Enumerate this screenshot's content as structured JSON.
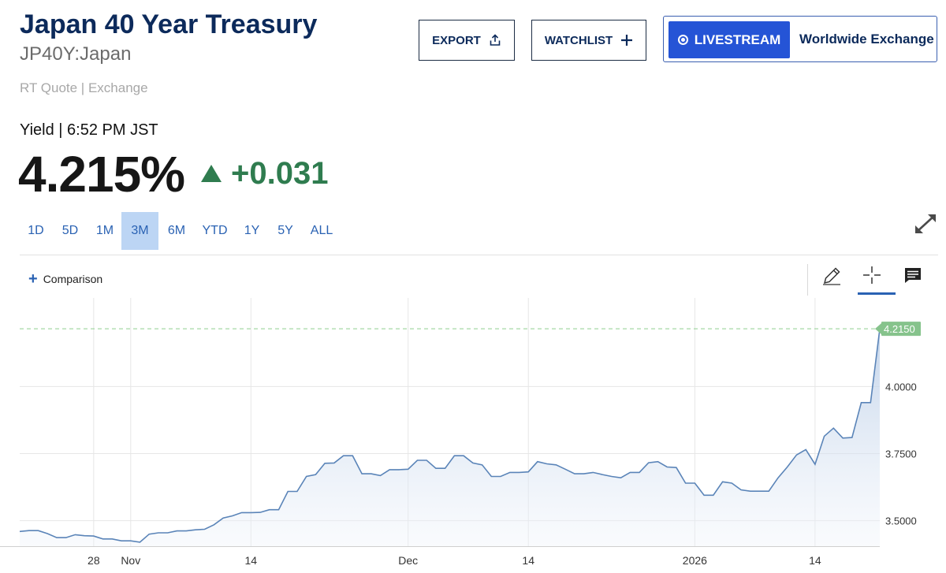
{
  "header": {
    "title": "Japan 40 Year Treasury",
    "symbol": "JP40Y:Japan",
    "quote_source": "RT Quote | Exchange"
  },
  "quote": {
    "yield_label": "Yield | 6:52 PM JST",
    "value": "4.215%",
    "change": "+0.031",
    "change_direction": "up",
    "change_color": "#2f7c4f"
  },
  "actions": {
    "export_label": "EXPORT",
    "watchlist_label": "WATCHLIST",
    "livestream_label": "LIVESTREAM",
    "exchange_label": "Worldwide Exchange"
  },
  "ranges": {
    "selected": "3M",
    "items": [
      "1D",
      "5D",
      "1M",
      "3M",
      "6M",
      "YTD",
      "1Y",
      "5Y",
      "ALL"
    ]
  },
  "toolbar": {
    "comparison_label": "Comparison",
    "icons": [
      "pencil-icon",
      "crosshair-icon",
      "notes-icon",
      "expand-icon"
    ]
  },
  "chart_data": {
    "type": "area",
    "title": "",
    "xlabel": "",
    "ylabel": "",
    "x_ticks": [
      {
        "label": "28",
        "date": "2025-10-28"
      },
      {
        "label": "Nov",
        "date": "2025-11-01"
      },
      {
        "label": "14",
        "date": "2025-11-14"
      },
      {
        "label": "Dec",
        "date": "2025-12-01"
      },
      {
        "label": "14",
        "date": "2025-12-14"
      },
      {
        "label": "2026",
        "date": "2026-01-01"
      },
      {
        "label": "14",
        "date": "2026-01-14"
      }
    ],
    "x_range": [
      "2025-10-20",
      "2026-01-21"
    ],
    "y_ticks": [
      3.5,
      3.75,
      4.0
    ],
    "y_tick_labels": [
      "3.5000",
      "3.7500",
      "4.0000"
    ],
    "ylim": [
      3.405,
      4.33
    ],
    "last_value_label": "4.2150",
    "grid": true,
    "line_color": "#5a84b8",
    "fill_color": "#c9d7ea",
    "series": [
      {
        "values": [
          [
            "2025-10-20",
            3.46
          ],
          [
            "2025-10-21",
            3.463
          ],
          [
            "2025-10-22",
            3.463
          ],
          [
            "2025-10-23",
            3.452
          ],
          [
            "2025-10-24",
            3.437
          ],
          [
            "2025-10-25",
            3.437
          ],
          [
            "2025-10-26",
            3.448
          ],
          [
            "2025-10-27",
            3.444
          ],
          [
            "2025-10-28",
            3.443
          ],
          [
            "2025-10-29",
            3.432
          ],
          [
            "2025-10-30",
            3.432
          ],
          [
            "2025-10-31",
            3.425
          ],
          [
            "2025-11-01",
            3.425
          ],
          [
            "2025-11-02",
            3.42
          ],
          [
            "2025-11-03",
            3.45
          ],
          [
            "2025-11-04",
            3.455
          ],
          [
            "2025-11-05",
            3.455
          ],
          [
            "2025-11-06",
            3.462
          ],
          [
            "2025-11-07",
            3.462
          ],
          [
            "2025-11-08",
            3.466
          ],
          [
            "2025-11-09",
            3.468
          ],
          [
            "2025-11-10",
            3.485
          ],
          [
            "2025-11-11",
            3.51
          ],
          [
            "2025-11-12",
            3.518
          ],
          [
            "2025-11-13",
            3.53
          ],
          [
            "2025-11-14",
            3.53
          ],
          [
            "2025-11-15",
            3.531
          ],
          [
            "2025-11-16",
            3.541
          ],
          [
            "2025-11-17",
            3.541
          ],
          [
            "2025-11-18",
            3.609
          ],
          [
            "2025-11-19",
            3.609
          ],
          [
            "2025-11-20",
            3.665
          ],
          [
            "2025-11-21",
            3.672
          ],
          [
            "2025-11-22",
            3.714
          ],
          [
            "2025-11-23",
            3.715
          ],
          [
            "2025-11-24",
            3.742
          ],
          [
            "2025-11-25",
            3.742
          ],
          [
            "2025-11-26",
            3.675
          ],
          [
            "2025-11-27",
            3.675
          ],
          [
            "2025-11-28",
            3.668
          ],
          [
            "2025-11-29",
            3.69
          ],
          [
            "2025-11-30",
            3.69
          ],
          [
            "2025-12-01",
            3.692
          ],
          [
            "2025-12-02",
            3.725
          ],
          [
            "2025-12-03",
            3.725
          ],
          [
            "2025-12-04",
            3.695
          ],
          [
            "2025-12-05",
            3.695
          ],
          [
            "2025-12-06",
            3.742
          ],
          [
            "2025-12-07",
            3.742
          ],
          [
            "2025-12-08",
            3.715
          ],
          [
            "2025-12-09",
            3.708
          ],
          [
            "2025-12-10",
            3.665
          ],
          [
            "2025-12-11",
            3.665
          ],
          [
            "2025-12-12",
            3.68
          ],
          [
            "2025-12-13",
            3.68
          ],
          [
            "2025-12-14",
            3.682
          ],
          [
            "2025-12-15",
            3.72
          ],
          [
            "2025-12-16",
            3.712
          ],
          [
            "2025-12-17",
            3.708
          ],
          [
            "2025-12-18",
            3.692
          ],
          [
            "2025-12-19",
            3.675
          ],
          [
            "2025-12-20",
            3.675
          ],
          [
            "2025-12-21",
            3.68
          ],
          [
            "2025-12-22",
            3.672
          ],
          [
            "2025-12-23",
            3.665
          ],
          [
            "2025-12-24",
            3.66
          ],
          [
            "2025-12-25",
            3.68
          ],
          [
            "2025-12-26",
            3.68
          ],
          [
            "2025-12-27",
            3.716
          ],
          [
            "2025-12-28",
            3.72
          ],
          [
            "2025-12-29",
            3.7
          ],
          [
            "2025-12-30",
            3.698
          ],
          [
            "2025-12-31",
            3.64
          ],
          [
            "2026-01-01",
            3.64
          ],
          [
            "2026-01-02",
            3.595
          ],
          [
            "2026-01-03",
            3.595
          ],
          [
            "2026-01-04",
            3.645
          ],
          [
            "2026-01-05",
            3.64
          ],
          [
            "2026-01-06",
            3.615
          ],
          [
            "2026-01-07",
            3.61
          ],
          [
            "2026-01-08",
            3.61
          ],
          [
            "2026-01-09",
            3.61
          ],
          [
            "2026-01-10",
            3.66
          ],
          [
            "2026-01-11",
            3.7
          ],
          [
            "2026-01-12",
            3.745
          ],
          [
            "2026-01-13",
            3.765
          ],
          [
            "2026-01-14",
            3.71
          ],
          [
            "2026-01-15",
            3.815
          ],
          [
            "2026-01-16",
            3.845
          ],
          [
            "2026-01-17",
            3.808
          ],
          [
            "2026-01-18",
            3.81
          ],
          [
            "2026-01-19",
            3.94
          ],
          [
            "2026-01-20",
            3.94
          ],
          [
            "2026-01-21",
            4.215
          ]
        ]
      }
    ]
  }
}
